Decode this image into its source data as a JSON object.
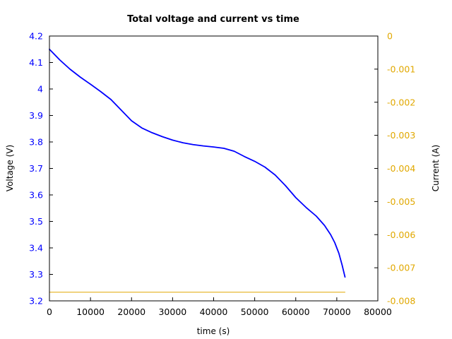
{
  "chart_data": {
    "type": "line",
    "title": "Total voltage and current vs time",
    "xlabel": "time (s)",
    "ylabel_left": "Voltage (V)",
    "ylabel_right": "Current (A)",
    "xlim": [
      0,
      80000
    ],
    "ylim_left": [
      3.2,
      4.2
    ],
    "ylim_right": [
      -0.008,
      0
    ],
    "x_ticks": [
      "0",
      "10000",
      "20000",
      "30000",
      "40000",
      "50000",
      "60000",
      "70000",
      "80000"
    ],
    "y_left_ticks": [
      "3.2",
      "3.3",
      "3.4",
      "3.5",
      "3.6",
      "3.7",
      "3.8",
      "3.9",
      "4",
      "4.1",
      "4.2"
    ],
    "y_right_ticks": [
      "-0.008",
      "-0.007",
      "-0.006",
      "-0.005",
      "-0.004",
      "-0.003",
      "-0.002",
      "-0.001",
      "0"
    ],
    "grid": false,
    "colors": {
      "voltage": "#0000ff",
      "current": "#e1a800",
      "left_axis_text": "#0000ff",
      "right_axis_text": "#e1a800",
      "x_axis_text": "#000000"
    },
    "series": [
      {
        "axis": "left",
        "x": [
          0,
          2500,
          5000,
          7500,
          10000,
          12500,
          15000,
          17500,
          20000,
          22500,
          25000,
          27500,
          30000,
          32500,
          35000,
          37500,
          40000,
          42500,
          45000,
          47500,
          50000,
          52500,
          55000,
          57500,
          60000,
          62500,
          65000,
          67000,
          68500,
          69500,
          70500,
          71300,
          72000
        ],
        "y": [
          4.15,
          4.11,
          4.075,
          4.045,
          4.018,
          3.99,
          3.96,
          3.92,
          3.88,
          3.853,
          3.835,
          3.82,
          3.807,
          3.797,
          3.79,
          3.785,
          3.781,
          3.776,
          3.765,
          3.745,
          3.727,
          3.705,
          3.675,
          3.635,
          3.59,
          3.553,
          3.52,
          3.485,
          3.45,
          3.42,
          3.38,
          3.335,
          3.29
        ]
      },
      {
        "axis": "right",
        "x": [
          0,
          72000
        ],
        "y": [
          -0.00774,
          -0.00774
        ]
      }
    ]
  }
}
